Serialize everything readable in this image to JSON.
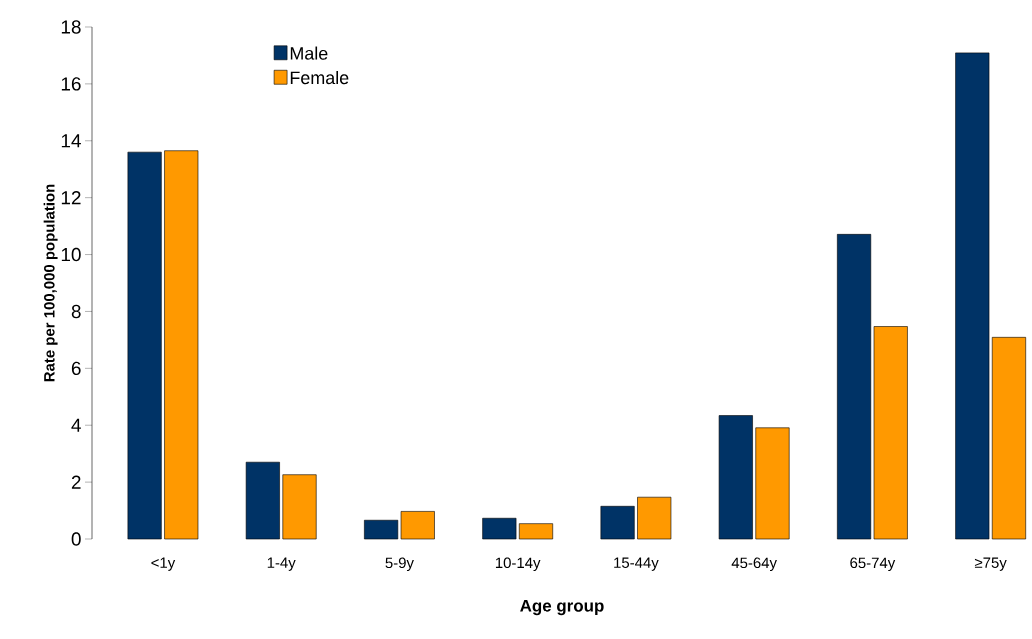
{
  "chart_data": {
    "type": "bar",
    "xlabel": "Age group",
    "ylabel": "Rate per 100,000 population",
    "categories": [
      "<1y",
      "1-4y",
      "5-9y",
      "10-14y",
      "15-44y",
      "45-64y",
      "65-74y",
      "≥75y"
    ],
    "series": [
      {
        "name": "Male",
        "color": "#003366",
        "values": [
          13.6,
          2.7,
          0.66,
          0.73,
          1.15,
          4.34,
          10.71,
          17.09
        ]
      },
      {
        "name": "Female",
        "color": "#ff9900",
        "values": [
          13.65,
          2.26,
          0.97,
          0.54,
          1.47,
          3.91,
          7.47,
          7.09
        ]
      }
    ],
    "ylim": [
      0,
      18
    ],
    "yticks": [
      0,
      2,
      4,
      6,
      8,
      10,
      12,
      14,
      16,
      18
    ],
    "grid": false,
    "legend": "top left"
  }
}
